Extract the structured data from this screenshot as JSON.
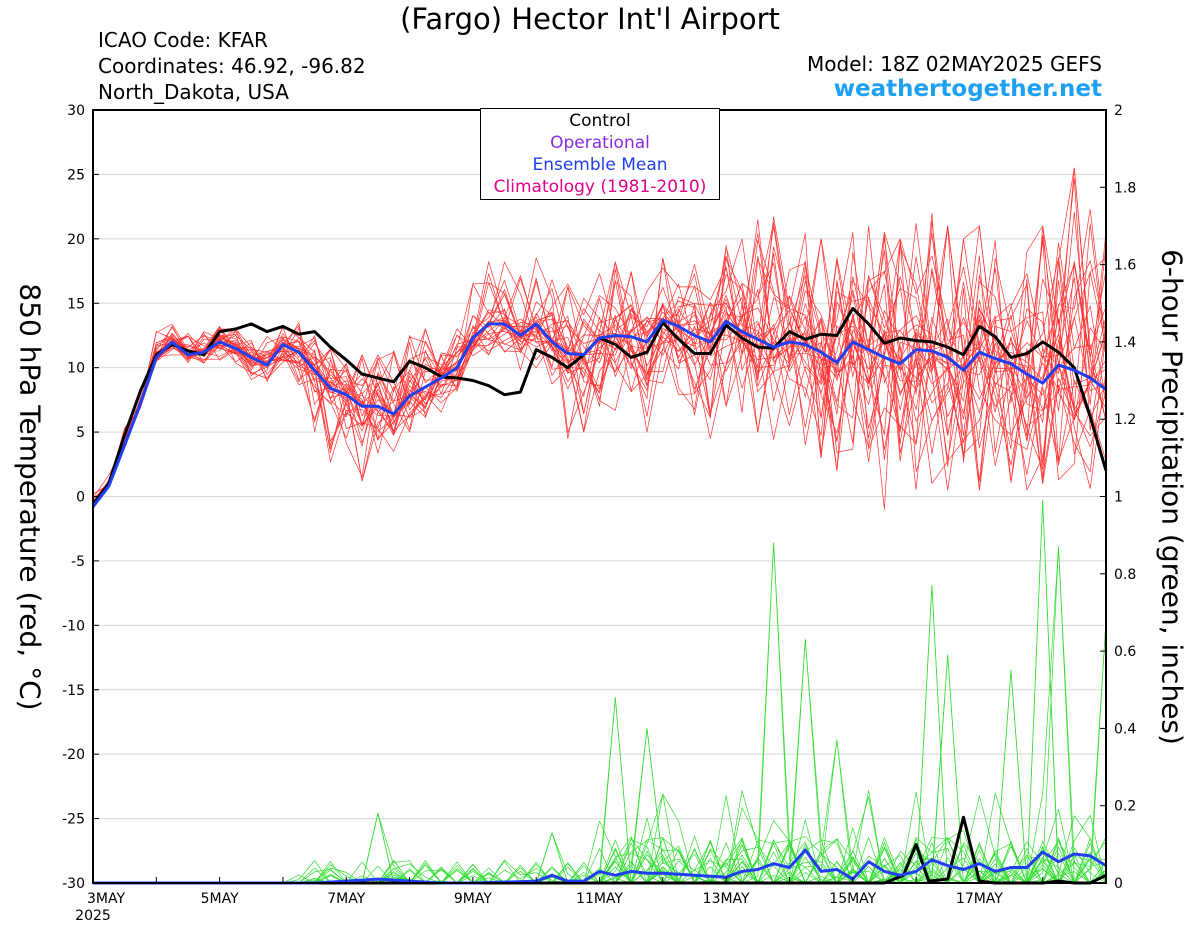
{
  "header": {
    "title": "(Fargo) Hector Int'l Airport",
    "icao": "ICAO Code: KFAR",
    "coordinates": "Coordinates: 46.92, -96.82",
    "region": "North_Dakota, USA",
    "model": "Model: 18Z 02MAY2025 GEFS",
    "site": "weathertogether.net"
  },
  "legend": [
    {
      "label": "Control",
      "color": "#000000"
    },
    {
      "label": "Operational",
      "color": "#8a2be2"
    },
    {
      "label": "Ensemble Mean",
      "color": "#1f3ff0"
    },
    {
      "label": "Climatology (1981-2010)",
      "color": "#e0008a"
    }
  ],
  "chart_data": {
    "type": "line",
    "ylabel_left": "850 hPa Temperature (red, °C)",
    "ylabel_right": "6-hour Precipitation (green, inches)",
    "y_left_range": [
      -30,
      30
    ],
    "y_left_ticks": [
      "30",
      "25",
      "20",
      "15",
      "10",
      "5",
      "0",
      "-5",
      "-10",
      "-15",
      "-20",
      "-25",
      "-30"
    ],
    "y_right_range": [
      0,
      2
    ],
    "y_right_ticks": [
      "2",
      "1.8",
      "1.6",
      "1.4",
      "1.2",
      "1",
      "0.8",
      "0.6",
      "0.4",
      "0.2",
      "0"
    ],
    "x_range_days": [
      3,
      19
    ],
    "x_ticks": [
      {
        "day": 3,
        "label": "3MAY",
        "sub": "2025"
      },
      {
        "day": 5,
        "label": "5MAY",
        "sub": ""
      },
      {
        "day": 7,
        "label": "7MAY",
        "sub": ""
      },
      {
        "day": 9,
        "label": "9MAY",
        "sub": ""
      },
      {
        "day": 11,
        "label": "11MAY",
        "sub": ""
      },
      {
        "day": 13,
        "label": "13MAY",
        "sub": ""
      },
      {
        "day": 15,
        "label": "15MAY",
        "sub": ""
      },
      {
        "day": 17,
        "label": "17MAY",
        "sub": ""
      }
    ],
    "grid": "horizontal",
    "series": [
      {
        "name": "Control",
        "color": "#000000",
        "width": 3,
        "x": [
          3.0,
          3.25,
          3.5,
          3.75,
          4.0,
          4.25,
          4.5,
          4.75,
          5.0,
          5.25,
          5.5,
          5.75,
          6.0,
          6.25,
          6.5,
          6.75,
          7.0,
          7.25,
          7.5,
          7.75,
          8.0,
          8.25,
          8.5,
          8.75,
          9.0,
          9.25,
          9.5,
          9.75,
          10.0,
          10.25,
          10.5,
          10.75,
          11.0,
          11.25,
          11.5,
          11.75,
          12.0,
          12.25,
          12.5,
          12.75,
          13.0,
          13.25,
          13.5,
          13.75,
          14.0,
          14.25,
          14.5,
          14.75,
          15.0,
          15.25,
          15.5,
          15.75,
          16.0,
          16.25,
          16.5,
          16.75,
          17.0,
          17.25,
          17.5,
          17.75,
          18.0,
          18.25,
          18.5,
          18.75,
          19.0
        ],
        "y": [
          -0.6,
          1.0,
          4.8,
          8.2,
          11.0,
          11.8,
          11.3,
          11.0,
          12.8,
          13.0,
          13.4,
          12.8,
          13.2,
          12.6,
          12.8,
          11.6,
          10.6,
          9.5,
          9.2,
          8.9,
          10.5,
          10.0,
          9.3,
          9.2,
          9.0,
          8.6,
          7.9,
          8.1,
          11.4,
          10.8,
          10.0,
          11.0,
          12.3,
          11.8,
          10.8,
          11.2,
          13.5,
          12.2,
          11.1,
          11.1,
          13.3,
          12.3,
          11.6,
          11.5,
          12.8,
          12.2,
          12.6,
          12.5,
          14.6,
          13.4,
          11.9,
          12.3,
          12.1,
          12.0,
          11.6,
          11.0,
          13.2,
          12.4,
          10.8,
          11.1,
          12.0,
          11.2,
          10.0,
          6.2,
          2.0
        ]
      },
      {
        "name": "Ensemble Mean",
        "color": "#1f3ff0",
        "width": 3,
        "x": [
          3.0,
          3.25,
          3.5,
          3.75,
          4.0,
          4.25,
          4.5,
          4.75,
          5.0,
          5.25,
          5.5,
          5.75,
          6.0,
          6.25,
          6.5,
          6.75,
          7.0,
          7.25,
          7.5,
          7.75,
          8.0,
          8.25,
          8.5,
          8.75,
          9.0,
          9.25,
          9.5,
          9.75,
          10.0,
          10.25,
          10.5,
          10.75,
          11.0,
          11.25,
          11.5,
          11.75,
          12.0,
          12.25,
          12.5,
          12.75,
          13.0,
          13.25,
          13.5,
          13.75,
          14.0,
          14.25,
          14.5,
          14.75,
          15.0,
          15.25,
          15.5,
          15.75,
          16.0,
          16.25,
          16.5,
          16.75,
          17.0,
          17.25,
          17.5,
          17.75,
          18.0,
          18.25,
          18.5,
          18.75,
          19.0
        ],
        "y": [
          -0.8,
          0.8,
          4.0,
          7.2,
          10.8,
          12.0,
          11.0,
          11.2,
          12.0,
          11.5,
          10.8,
          10.2,
          11.8,
          11.2,
          9.8,
          8.4,
          7.9,
          7.0,
          7.0,
          6.4,
          7.8,
          8.5,
          9.2,
          10.0,
          12.3,
          13.4,
          13.4,
          12.5,
          13.4,
          12.0,
          11.1,
          11.0,
          12.3,
          12.5,
          12.4,
          12.0,
          13.7,
          13.2,
          12.5,
          12.0,
          13.6,
          12.8,
          12.2,
          11.6,
          12.0,
          11.8,
          11.2,
          10.4,
          12.0,
          11.4,
          10.8,
          10.3,
          11.4,
          11.3,
          10.8,
          9.8,
          11.2,
          10.7,
          10.3,
          9.5,
          8.8,
          10.2,
          9.8,
          9.2,
          8.3
        ]
      }
    ],
    "precip_series": [
      {
        "name": "Control",
        "color": "#000000",
        "width": 3,
        "x": [
          3.0,
          11.0,
          14.5,
          15.5,
          15.8,
          16.0,
          16.2,
          16.5,
          16.75,
          17.0,
          17.25,
          17.5,
          17.75,
          18.0,
          18.25,
          18.5,
          18.75,
          19.0
        ],
        "y": [
          0,
          0,
          0,
          0,
          0.02,
          0.1,
          0.005,
          0.01,
          0.17,
          0.005,
          0,
          0,
          0,
          0,
          0.005,
          0,
          0,
          0.02
        ]
      },
      {
        "name": "Ensemble Mean",
        "color": "#1f3ff0",
        "width": 3,
        "x": [
          3.0,
          6.0,
          6.5,
          7.0,
          7.5,
          8.0,
          8.5,
          9.0,
          10.0,
          10.25,
          10.5,
          10.75,
          11.0,
          11.25,
          11.5,
          11.75,
          12.0,
          12.5,
          13.0,
          13.25,
          13.5,
          13.75,
          14.0,
          14.25,
          14.5,
          14.75,
          15.0,
          15.25,
          15.5,
          15.75,
          16.0,
          16.25,
          16.5,
          16.75,
          17.0,
          17.25,
          17.5,
          17.75,
          18.0,
          18.25,
          18.5,
          18.75,
          19.0
        ],
        "y": [
          0,
          0,
          0,
          0.005,
          0.01,
          0.005,
          0,
          0,
          0.005,
          0.02,
          0.005,
          0.005,
          0.03,
          0.02,
          0.03,
          0.025,
          0.025,
          0.02,
          0.015,
          0.03,
          0.035,
          0.05,
          0.04,
          0.085,
          0.03,
          0.035,
          0.01,
          0.055,
          0.03,
          0.02,
          0.03,
          0.06,
          0.045,
          0.035,
          0.05,
          0.03,
          0.04,
          0.04,
          0.08,
          0.055,
          0.075,
          0.07,
          0.045
        ]
      }
    ],
    "ensemble_temperature": {
      "color": "#ff3333",
      "member_count": 30,
      "spread_lo": [
        -0.8,
        0.8,
        4.0,
        6.8,
        10.5,
        11.0,
        10.4,
        10.2,
        10.5,
        9.8,
        9.0,
        8.5,
        10.2,
        8.5,
        4.5,
        1.2,
        2.5,
        1.2,
        3.0,
        3.5,
        5.0,
        6.0,
        6.5,
        7.0,
        10.5,
        11.0,
        11.2,
        9.8,
        10.0,
        7.0,
        4.5,
        5.0,
        7.0,
        6.5,
        6.0,
        5.0,
        8.5,
        7.5,
        5.5,
        4.5,
        7.0,
        6.5,
        5.0,
        4.0,
        5.5,
        4.0,
        3.0,
        2.0,
        3.0,
        0.5,
        -1.0,
        -0.5,
        0.5,
        1.0,
        0.0,
        -0.5,
        0.5,
        1.5,
        0.0,
        0.5,
        1.0,
        0.5,
        -0.5,
        -1.5,
        -4.5
      ],
      "spread_hi": [
        0.2,
        1.8,
        5.5,
        8.8,
        12.8,
        13.4,
        13.0,
        12.8,
        13.2,
        13.0,
        12.8,
        12.5,
        13.8,
        13.5,
        12.8,
        12.2,
        11.5,
        11.0,
        11.0,
        11.5,
        12.5,
        13.0,
        12.5,
        13.0,
        16.5,
        18.5,
        18.8,
        17.5,
        18.5,
        17.5,
        16.5,
        17.0,
        18.0,
        18.2,
        17.5,
        17.0,
        18.5,
        18.5,
        18.0,
        17.5,
        19.5,
        20.0,
        21.5,
        22.0,
        20.5,
        21.0,
        20.0,
        19.5,
        20.5,
        21.0,
        20.5,
        20.0,
        21.5,
        22.0,
        21.0,
        20.0,
        21.0,
        20.5,
        19.5,
        19.0,
        21.0,
        24.0,
        25.5,
        23.0,
        20.5
      ]
    },
    "ensemble_precip": {
      "color": "#33dd33",
      "member_count": 30,
      "notable_peaks": [
        {
          "day": 7.5,
          "value": 0.18
        },
        {
          "day": 10.25,
          "value": 0.13
        },
        {
          "day": 11.25,
          "value": 0.48
        },
        {
          "day": 11.75,
          "value": 0.4
        },
        {
          "day": 12.0,
          "value": 0.23
        },
        {
          "day": 13.75,
          "value": 0.88
        },
        {
          "day": 14.25,
          "value": 0.63
        },
        {
          "day": 14.75,
          "value": 0.37
        },
        {
          "day": 16.25,
          "value": 0.77
        },
        {
          "day": 16.5,
          "value": 0.59
        },
        {
          "day": 17.5,
          "value": 0.55
        },
        {
          "day": 18.0,
          "value": 0.99
        },
        {
          "day": 18.25,
          "value": 0.87
        },
        {
          "day": 19.0,
          "value": 0.68
        }
      ]
    }
  }
}
